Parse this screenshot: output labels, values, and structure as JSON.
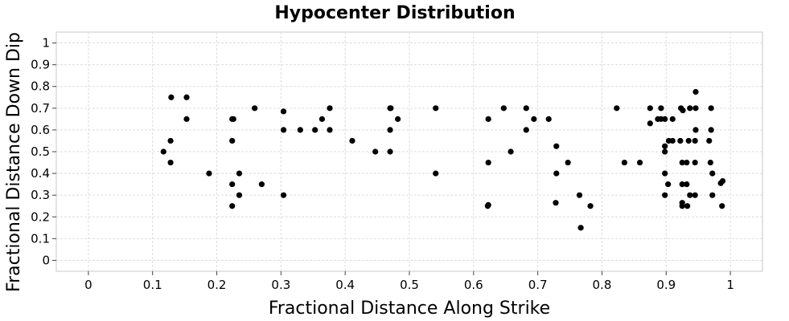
{
  "chart_data": {
    "type": "scatter",
    "title": "Hypocenter Distribution",
    "xlabel": "Fractional Distance Along Strike",
    "ylabel": "Fractional Distance Down Dip",
    "xlim": [
      -0.05,
      1.05
    ],
    "ylim": [
      1.05,
      -0.05
    ],
    "y_axis_inverted": true,
    "grid": true,
    "x_ticks": [
      0,
      0.1,
      0.2,
      0.3,
      0.4,
      0.5,
      0.6,
      0.7,
      0.8,
      0.9,
      1
    ],
    "y_ticks": [
      0,
      0.1,
      0.2,
      0.3,
      0.4,
      0.5,
      0.6,
      0.7,
      0.8,
      0.9,
      1
    ],
    "x_tick_labels": [
      "0",
      "0.1",
      "0.2",
      "0.3",
      "0.4",
      "0.5",
      "0.6",
      "0.7",
      "0.8",
      "0.9",
      "1"
    ],
    "y_tick_labels": [
      "0",
      "0.1",
      "0.2",
      "0.3",
      "0.4",
      "0.5",
      "0.6",
      "0.7",
      "0.8",
      "0.9",
      "1"
    ],
    "fault_outline": {
      "x": [
        0,
        1
      ],
      "y": [
        0,
        1
      ],
      "color": "#808080"
    },
    "marker_color": "#000000",
    "points": [
      {
        "x": 0.117,
        "y": 0.5
      },
      {
        "x": 0.128,
        "y": 0.45
      },
      {
        "x": 0.128,
        "y": 0.55
      },
      {
        "x": 0.129,
        "y": 0.75
      },
      {
        "x": 0.153,
        "y": 0.65
      },
      {
        "x": 0.153,
        "y": 0.75
      },
      {
        "x": 0.188,
        "y": 0.4
      },
      {
        "x": 0.224,
        "y": 0.25
      },
      {
        "x": 0.224,
        "y": 0.35
      },
      {
        "x": 0.224,
        "y": 0.55
      },
      {
        "x": 0.224,
        "y": 0.65
      },
      {
        "x": 0.226,
        "y": 0.65
      },
      {
        "x": 0.235,
        "y": 0.3
      },
      {
        "x": 0.235,
        "y": 0.4
      },
      {
        "x": 0.259,
        "y": 0.7
      },
      {
        "x": 0.27,
        "y": 0.35
      },
      {
        "x": 0.304,
        "y": 0.3
      },
      {
        "x": 0.304,
        "y": 0.6
      },
      {
        "x": 0.304,
        "y": 0.685
      },
      {
        "x": 0.33,
        "y": 0.6
      },
      {
        "x": 0.353,
        "y": 0.6
      },
      {
        "x": 0.364,
        "y": 0.65
      },
      {
        "x": 0.376,
        "y": 0.6
      },
      {
        "x": 0.376,
        "y": 0.7
      },
      {
        "x": 0.411,
        "y": 0.55
      },
      {
        "x": 0.447,
        "y": 0.5
      },
      {
        "x": 0.47,
        "y": 0.5
      },
      {
        "x": 0.47,
        "y": 0.6
      },
      {
        "x": 0.47,
        "y": 0.7
      },
      {
        "x": 0.471,
        "y": 0.7
      },
      {
        "x": 0.482,
        "y": 0.65
      },
      {
        "x": 0.541,
        "y": 0.4
      },
      {
        "x": 0.541,
        "y": 0.7
      },
      {
        "x": 0.622,
        "y": 0.25
      },
      {
        "x": 0.623,
        "y": 0.255
      },
      {
        "x": 0.623,
        "y": 0.45
      },
      {
        "x": 0.623,
        "y": 0.65
      },
      {
        "x": 0.647,
        "y": 0.7
      },
      {
        "x": 0.658,
        "y": 0.5
      },
      {
        "x": 0.682,
        "y": 0.6
      },
      {
        "x": 0.682,
        "y": 0.7
      },
      {
        "x": 0.694,
        "y": 0.65
      },
      {
        "x": 0.717,
        "y": 0.65
      },
      {
        "x": 0.728,
        "y": 0.265
      },
      {
        "x": 0.729,
        "y": 0.4
      },
      {
        "x": 0.729,
        "y": 0.525
      },
      {
        "x": 0.747,
        "y": 0.45
      },
      {
        "x": 0.765,
        "y": 0.3
      },
      {
        "x": 0.767,
        "y": 0.15
      },
      {
        "x": 0.782,
        "y": 0.25
      },
      {
        "x": 0.823,
        "y": 0.7
      },
      {
        "x": 0.835,
        "y": 0.45
      },
      {
        "x": 0.859,
        "y": 0.45
      },
      {
        "x": 0.875,
        "y": 0.63
      },
      {
        "x": 0.875,
        "y": 0.7
      },
      {
        "x": 0.887,
        "y": 0.65
      },
      {
        "x": 0.892,
        "y": 0.65
      },
      {
        "x": 0.892,
        "y": 0.7
      },
      {
        "x": 0.898,
        "y": 0.3
      },
      {
        "x": 0.898,
        "y": 0.4
      },
      {
        "x": 0.898,
        "y": 0.5
      },
      {
        "x": 0.898,
        "y": 0.525
      },
      {
        "x": 0.898,
        "y": 0.65
      },
      {
        "x": 0.903,
        "y": 0.35
      },
      {
        "x": 0.904,
        "y": 0.55
      },
      {
        "x": 0.91,
        "y": 0.55
      },
      {
        "x": 0.91,
        "y": 0.65
      },
      {
        "x": 0.922,
        "y": 0.55
      },
      {
        "x": 0.923,
        "y": 0.7
      },
      {
        "x": 0.925,
        "y": 0.25
      },
      {
        "x": 0.925,
        "y": 0.265
      },
      {
        "x": 0.925,
        "y": 0.35
      },
      {
        "x": 0.925,
        "y": 0.45
      },
      {
        "x": 0.926,
        "y": 0.69
      },
      {
        "x": 0.932,
        "y": 0.35
      },
      {
        "x": 0.932,
        "y": 0.45
      },
      {
        "x": 0.933,
        "y": 0.25
      },
      {
        "x": 0.935,
        "y": 0.55
      },
      {
        "x": 0.937,
        "y": 0.7
      },
      {
        "x": 0.937,
        "y": 0.3
      },
      {
        "x": 0.945,
        "y": 0.45
      },
      {
        "x": 0.945,
        "y": 0.3
      },
      {
        "x": 0.945,
        "y": 0.55
      },
      {
        "x": 0.946,
        "y": 0.6
      },
      {
        "x": 0.946,
        "y": 0.7
      },
      {
        "x": 0.946,
        "y": 0.775
      },
      {
        "x": 0.967,
        "y": 0.55
      },
      {
        "x": 0.969,
        "y": 0.45
      },
      {
        "x": 0.97,
        "y": 0.6
      },
      {
        "x": 0.97,
        "y": 0.7
      },
      {
        "x": 0.972,
        "y": 0.3
      },
      {
        "x": 0.972,
        "y": 0.4
      },
      {
        "x": 0.985,
        "y": 0.355
      },
      {
        "x": 0.987,
        "y": 0.25
      },
      {
        "x": 0.988,
        "y": 0.365
      }
    ]
  }
}
